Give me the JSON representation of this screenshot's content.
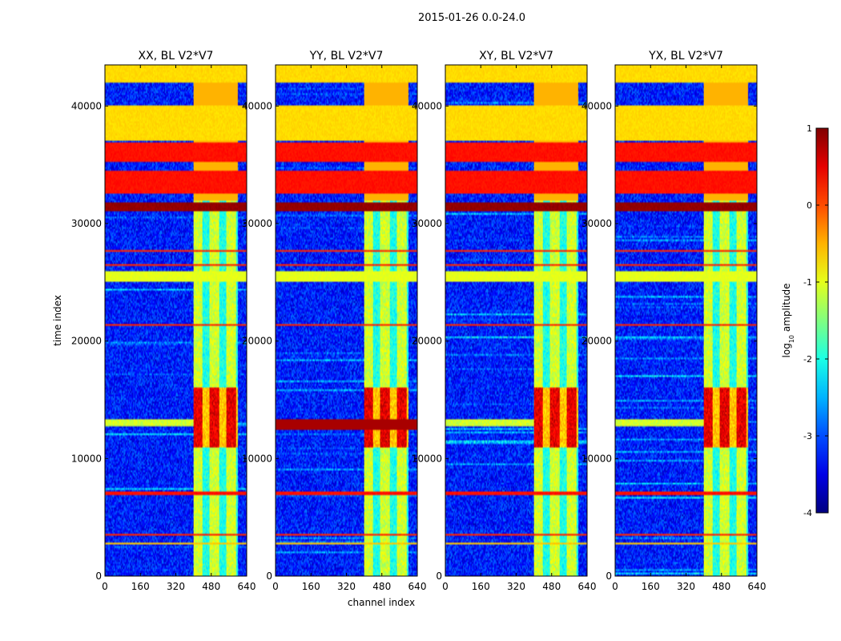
{
  "figure_title": "2015-01-26 0.0-24.0",
  "chart_data": {
    "type": "heatmap",
    "suptitle": "2015-01-26 0.0-24.0",
    "xlabel": "channel index",
    "ylabel": "time index",
    "xlim": [
      0,
      640
    ],
    "ylim": [
      0,
      43500
    ],
    "xticks": [
      0,
      160,
      320,
      480,
      640
    ],
    "yticks": [
      0,
      10000,
      20000,
      30000,
      40000
    ],
    "panels": [
      {
        "title": "XX, BL V2*V7",
        "variant": "xx"
      },
      {
        "title": "YY, BL V2*V7",
        "variant": "yy"
      },
      {
        "title": "XY, BL V2*V7",
        "variant": "xy"
      },
      {
        "title": "YX, BL V2*V7",
        "variant": "yx"
      }
    ],
    "colorbar": {
      "label": "log10 amplitude",
      "label_base": "log",
      "label_sub": "10",
      "label_rest": " amplitude",
      "min": -4,
      "max": 1,
      "ticks": [
        1,
        0,
        -1,
        -2,
        -3,
        -4
      ],
      "colormap": "jet"
    },
    "bands": [
      {
        "t0": 42000,
        "t1": 43500,
        "level": -0.7
      },
      {
        "t0": 37000,
        "t1": 40000,
        "level": -0.7
      },
      {
        "t0": 35200,
        "t1": 36900,
        "level": 0.3
      },
      {
        "t0": 32500,
        "t1": 34500,
        "level": 0.3
      },
      {
        "t0": 31000,
        "t1": 31800,
        "level": 0.9
      },
      {
        "t0": 25100,
        "t1": 25900,
        "level": -1.0
      },
      {
        "t0": 27600,
        "t1": 27800,
        "level": 0.2
      },
      {
        "t0": 26400,
        "t1": 26600,
        "level": 0.2
      },
      {
        "t0": 21300,
        "t1": 21450,
        "level": 0.2
      },
      {
        "t0": 6900,
        "t1": 7200,
        "level": 0.3
      },
      {
        "t0": 3400,
        "t1": 3600,
        "level": 0.2
      },
      {
        "t0": 2700,
        "t1": 2850,
        "level": -0.6
      }
    ],
    "active_channels": [
      400,
      600
    ],
    "burst_time": [
      11000,
      16000
    ]
  }
}
